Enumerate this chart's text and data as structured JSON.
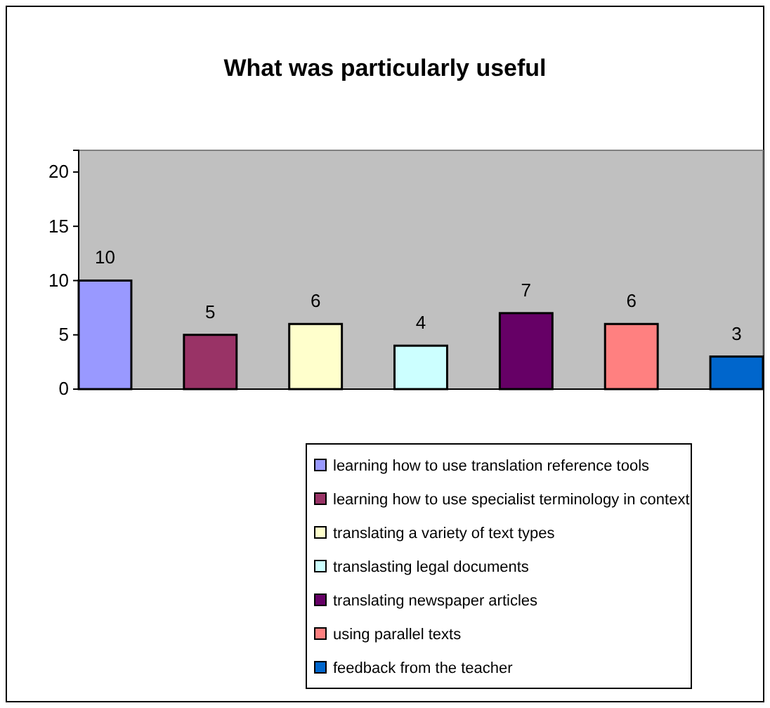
{
  "chart_data": {
    "type": "bar",
    "title": "What was particularly useful",
    "categories": [
      null,
      null,
      null,
      null,
      null,
      null,
      null
    ],
    "series": [
      {
        "name": "learning how to use translation reference tools",
        "color": "#9999ff",
        "values": [
          10,
          null,
          null,
          null,
          null,
          null,
          null
        ]
      },
      {
        "name": "learning how to use specialist terminology in context",
        "color": "#993366",
        "values": [
          null,
          5,
          null,
          null,
          null,
          null,
          null
        ]
      },
      {
        "name": "translating a variety of text types",
        "color": "#ffffcc",
        "values": [
          null,
          null,
          6,
          null,
          null,
          null,
          null
        ]
      },
      {
        "name": "translasting legal documents",
        "color": "#ccffff",
        "values": [
          null,
          null,
          null,
          4,
          null,
          null,
          null
        ]
      },
      {
        "name": "translating newspaper articles",
        "color": "#660066",
        "values": [
          null,
          null,
          null,
          null,
          7,
          null,
          null
        ]
      },
      {
        "name": "using parallel texts",
        "color": "#ff8080",
        "values": [
          null,
          null,
          null,
          null,
          null,
          6,
          null
        ]
      },
      {
        "name": "feedback from the teacher",
        "color": "#0066cc",
        "values": [
          null,
          null,
          null,
          null,
          null,
          null,
          3
        ]
      }
    ],
    "ylim": [
      0,
      22
    ],
    "yticks": [
      0,
      5,
      10,
      15,
      20
    ],
    "data_labels": true,
    "legend": "bottom",
    "tick_labels": "y"
  }
}
